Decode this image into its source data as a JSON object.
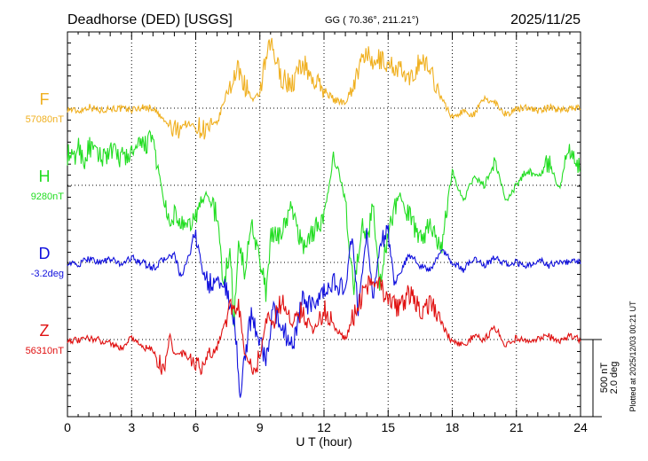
{
  "header": {
    "station": "Deadhorse (DED)  [USGS]",
    "coords": "GG ( 70.36°, 211.21°)",
    "date": "2025/11/25"
  },
  "footer": {
    "plotted": "Plotted at 2025/12/03 00:21 UT"
  },
  "chart_data": {
    "type": "line",
    "xlabel": "U T (hour)",
    "xlim": [
      0,
      24
    ],
    "xticks": [
      "0",
      "3",
      "6",
      "9",
      "12",
      "15",
      "18",
      "21",
      "24"
    ],
    "scale": {
      "field": "500 nT",
      "angle": "2.0 deg"
    },
    "series": [
      {
        "name": "F",
        "baseline_label": "57080nT",
        "color": "#f0b020",
        "lane": 0,
        "points": [
          [
            0,
            -5
          ],
          [
            0.5,
            -20
          ],
          [
            1,
            10
          ],
          [
            1.5,
            -15
          ],
          [
            2,
            0
          ],
          [
            2.5,
            -5
          ],
          [
            3,
            -10
          ],
          [
            3.5,
            5
          ],
          [
            4,
            0
          ],
          [
            4.5,
            -80
          ],
          [
            5,
            -150
          ],
          [
            5.5,
            -100
          ],
          [
            6,
            -120
          ],
          [
            6.5,
            -140
          ],
          [
            7,
            -100
          ],
          [
            7.5,
            120
          ],
          [
            8,
            250
          ],
          [
            8.3,
            150
          ],
          [
            8.7,
            40
          ],
          [
            9,
            100
          ],
          [
            9.2,
            250
          ],
          [
            9.5,
            420
          ],
          [
            10,
            200
          ],
          [
            10.5,
            150
          ],
          [
            11,
            300
          ],
          [
            11.5,
            180
          ],
          [
            12,
            120
          ],
          [
            12.5,
            50
          ],
          [
            13,
            40
          ],
          [
            13.5,
            200
          ],
          [
            14,
            380
          ],
          [
            14.2,
            260
          ],
          [
            14.6,
            320
          ],
          [
            15,
            280
          ],
          [
            15.5,
            260
          ],
          [
            16,
            160
          ],
          [
            16.5,
            320
          ],
          [
            17,
            240
          ],
          [
            17.5,
            60
          ],
          [
            18,
            -60
          ],
          [
            18.5,
            -20
          ],
          [
            19,
            -40
          ],
          [
            19.5,
            60
          ],
          [
            20,
            40
          ],
          [
            20.5,
            -40
          ],
          [
            21,
            -10
          ],
          [
            21.5,
            10
          ],
          [
            22,
            -20
          ],
          [
            22.5,
            5
          ],
          [
            23,
            -10
          ],
          [
            23.5,
            0
          ],
          [
            24,
            0
          ]
        ]
      },
      {
        "name": "H",
        "baseline_label": "9280nT",
        "color": "#22dd22",
        "lane": 1,
        "points": [
          [
            0,
            200
          ],
          [
            0.3,
            160
          ],
          [
            0.5,
            260
          ],
          [
            0.8,
            150
          ],
          [
            1,
            250
          ],
          [
            1.5,
            180
          ],
          [
            2,
            220
          ],
          [
            2.5,
            180
          ],
          [
            3,
            200
          ],
          [
            3.5,
            260
          ],
          [
            4,
            300
          ],
          [
            4.5,
            -100
          ],
          [
            4.8,
            -300
          ],
          [
            5,
            -180
          ],
          [
            5.5,
            -300
          ],
          [
            6,
            -200
          ],
          [
            6.5,
            -50
          ],
          [
            7,
            -200
          ],
          [
            7.3,
            -650
          ],
          [
            7.6,
            -400
          ],
          [
            7.8,
            -900
          ],
          [
            8,
            -300
          ],
          [
            8.3,
            -600
          ],
          [
            8.6,
            -200
          ],
          [
            9,
            -500
          ],
          [
            9.3,
            -700
          ],
          [
            9.5,
            -350
          ],
          [
            10,
            -300
          ],
          [
            10.5,
            -150
          ],
          [
            11,
            -400
          ],
          [
            11.5,
            -300
          ],
          [
            12,
            -200
          ],
          [
            12.5,
            200
          ],
          [
            13,
            -100
          ],
          [
            13.4,
            -700
          ],
          [
            13.8,
            -200
          ],
          [
            14,
            -400
          ],
          [
            14.3,
            -100
          ],
          [
            14.6,
            -650
          ],
          [
            15,
            -300
          ],
          [
            15.5,
            -50
          ],
          [
            16,
            -200
          ],
          [
            16.5,
            -350
          ],
          [
            17,
            -250
          ],
          [
            17.5,
            -400
          ],
          [
            18,
            100
          ],
          [
            18.5,
            -100
          ],
          [
            19,
            50
          ],
          [
            19.5,
            0
          ],
          [
            20,
            150
          ],
          [
            20.5,
            -100
          ],
          [
            21,
            0
          ],
          [
            21.5,
            100
          ],
          [
            22,
            50
          ],
          [
            22.5,
            150
          ],
          [
            23,
            -20
          ],
          [
            23.5,
            250
          ],
          [
            24,
            100
          ]
        ]
      },
      {
        "name": "D",
        "baseline_label": "-3.2deg",
        "color": "#1010dd",
        "lane": 2,
        "points": [
          [
            0,
            0
          ],
          [
            0.5,
            -20
          ],
          [
            1,
            30
          ],
          [
            1.5,
            0
          ],
          [
            2,
            20
          ],
          [
            2.5,
            -10
          ],
          [
            3,
            30
          ],
          [
            3.5,
            0
          ],
          [
            4,
            -40
          ],
          [
            4.5,
            20
          ],
          [
            5,
            50
          ],
          [
            5.3,
            -100
          ],
          [
            5.6,
            0
          ],
          [
            6,
            200
          ],
          [
            6.3,
            -50
          ],
          [
            6.6,
            -150
          ],
          [
            7,
            -100
          ],
          [
            7.3,
            -150
          ],
          [
            7.6,
            -250
          ],
          [
            7.9,
            -500
          ],
          [
            8.1,
            -900
          ],
          [
            8.3,
            -600
          ],
          [
            8.6,
            -350
          ],
          [
            9,
            -500
          ],
          [
            9.3,
            -650
          ],
          [
            9.6,
            -300
          ],
          [
            10,
            -400
          ],
          [
            10.5,
            -550
          ],
          [
            11,
            -250
          ],
          [
            11.5,
            -300
          ],
          [
            12,
            -200
          ],
          [
            12.5,
            -120
          ],
          [
            13,
            -200
          ],
          [
            13.3,
            200
          ],
          [
            13.6,
            -300
          ],
          [
            14,
            200
          ],
          [
            14.3,
            -250
          ],
          [
            14.6,
            100
          ],
          [
            15,
            200
          ],
          [
            15.3,
            -150
          ],
          [
            15.6,
            -50
          ],
          [
            16,
            50
          ],
          [
            16.5,
            -20
          ],
          [
            17,
            -50
          ],
          [
            17.5,
            80
          ],
          [
            18,
            0
          ],
          [
            18.5,
            -50
          ],
          [
            19,
            30
          ],
          [
            19.5,
            -20
          ],
          [
            20,
            30
          ],
          [
            20.5,
            -10
          ],
          [
            21,
            0
          ],
          [
            21.5,
            -30
          ],
          [
            22,
            20
          ],
          [
            22.5,
            -20
          ],
          [
            23,
            10
          ],
          [
            23.5,
            0
          ],
          [
            24,
            0
          ]
        ]
      },
      {
        "name": "Z",
        "baseline_label": "56310nT",
        "color": "#e01010",
        "lane": 3,
        "points": [
          [
            0,
            0
          ],
          [
            0.5,
            -10
          ],
          [
            1,
            10
          ],
          [
            1.5,
            -5
          ],
          [
            2,
            -20
          ],
          [
            2.5,
            -60
          ],
          [
            3,
            20
          ],
          [
            3.5,
            -50
          ],
          [
            4,
            -70
          ],
          [
            4.5,
            -200
          ],
          [
            4.8,
            30
          ],
          [
            5,
            -100
          ],
          [
            5.5,
            -90
          ],
          [
            6,
            -180
          ],
          [
            6.5,
            -150
          ],
          [
            7,
            -50
          ],
          [
            7.5,
            180
          ],
          [
            8,
            250
          ],
          [
            8.3,
            -100
          ],
          [
            8.6,
            -200
          ],
          [
            9,
            -120
          ],
          [
            9.3,
            150
          ],
          [
            9.6,
            100
          ],
          [
            10,
            250
          ],
          [
            10.5,
            100
          ],
          [
            11,
            200
          ],
          [
            11.5,
            50
          ],
          [
            12,
            200
          ],
          [
            12.5,
            80
          ],
          [
            13,
            0
          ],
          [
            13.5,
            200
          ],
          [
            14,
            350
          ],
          [
            14.5,
            400
          ],
          [
            15,
            240
          ],
          [
            15.5,
            200
          ],
          [
            16,
            300
          ],
          [
            16.5,
            180
          ],
          [
            17,
            250
          ],
          [
            17.5,
            100
          ],
          [
            18,
            -20
          ],
          [
            18.5,
            -40
          ],
          [
            19,
            20
          ],
          [
            19.5,
            0
          ],
          [
            20,
            80
          ],
          [
            20.5,
            -40
          ],
          [
            21,
            10
          ],
          [
            21.5,
            -20
          ],
          [
            22,
            0
          ],
          [
            22.5,
            20
          ],
          [
            23,
            -10
          ],
          [
            23.5,
            20
          ],
          [
            24,
            0
          ]
        ]
      }
    ]
  }
}
